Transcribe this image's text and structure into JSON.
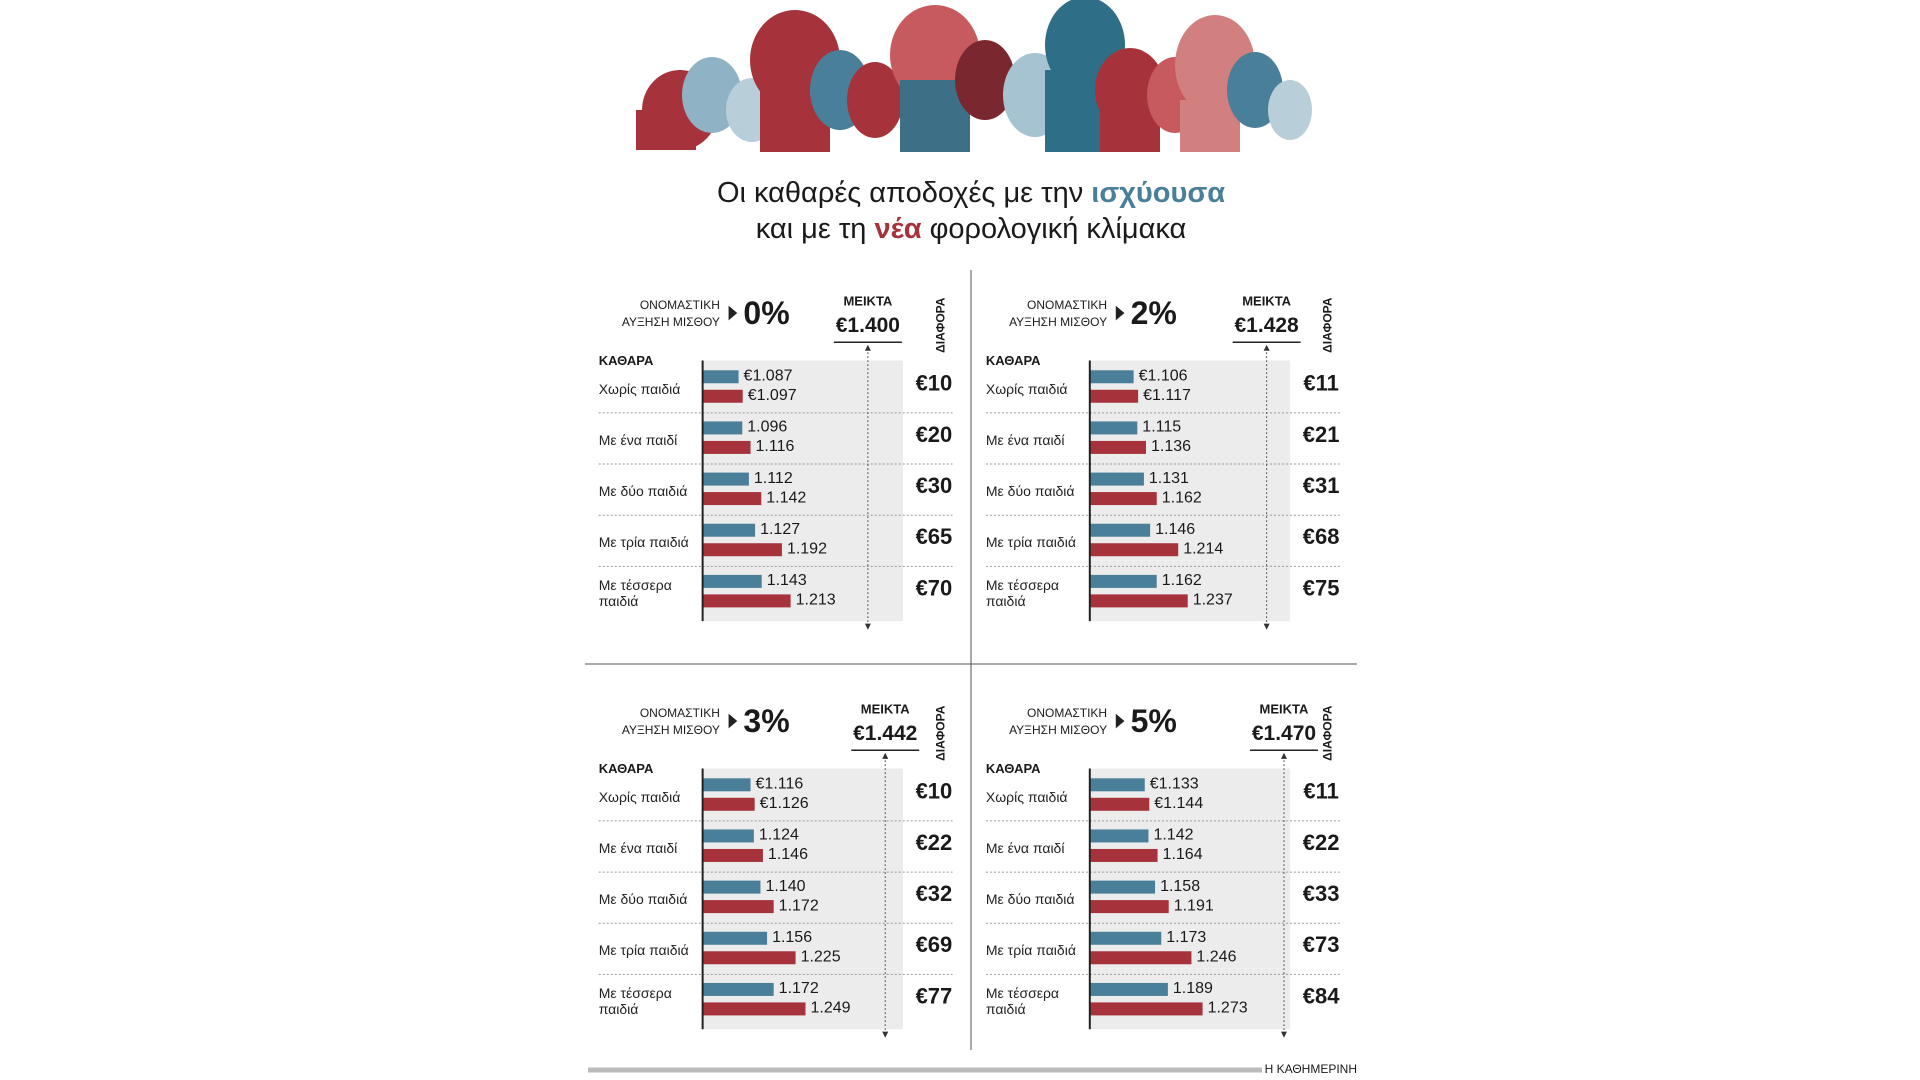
{
  "header": {
    "title_line1": [
      "Οι καθαρές αποδοχές με την",
      "ισχύουσα"
    ],
    "title_line2": [
      "και με τη",
      "νέα",
      "φορολογική κλίμακα"
    ],
    "credit": "Η ΚΑΘΗΜΕΡΙΝΗ"
  },
  "chart_data": [
    {
      "type": "bar",
      "orientation": "horizontal",
      "raise_caption": [
        "ΟΝΟΜΑΣΤΙΚΗ",
        "ΑΥΞΗΣΗ ΜΙΣΘΟΥ"
      ],
      "raise_label": "0%",
      "gross_caption": "ΜΕΙΚΤΑ",
      "gross": 1400,
      "gross_label": "€1.400",
      "net_caption": "ΚΑΘΑΡΑ",
      "difference_caption": "ΔΙΑΦΟΡΑ",
      "categories": [
        "Χωρίς παιδιά",
        "Με ένα παιδί",
        "Με δύο παιδιά",
        "Με τρία παιδιά",
        "Με τέσσερα παιδιά"
      ],
      "xlim": [
        1000,
        1500
      ],
      "series": [
        {
          "color": "#4a7f99",
          "values": [
            1087,
            1096,
            1112,
            1127,
            1143
          ],
          "value_labels": [
            "€1.087",
            "1.096",
            "1.112",
            "1.127",
            "1.143"
          ]
        },
        {
          "color": "#a6333c",
          "values": [
            1097,
            1116,
            1142,
            1192,
            1213
          ],
          "value_labels": [
            "€1.097",
            "1.116",
            "1.142",
            "1.192",
            "1.213"
          ]
        }
      ],
      "differences": [
        10,
        20,
        30,
        65,
        70
      ],
      "difference_labels": [
        "€10",
        "€20",
        "€30",
        "€65",
        "€70"
      ]
    },
    {
      "type": "bar",
      "orientation": "horizontal",
      "raise_caption": [
        "ΟΝΟΜΑΣΤΙΚΗ",
        "ΑΥΞΗΣΗ ΜΙΣΘΟΥ"
      ],
      "raise_label": "2%",
      "gross_caption": "ΜΕΙΚΤΑ",
      "gross": 1428,
      "gross_label": "€1.428",
      "net_caption": "ΚΑΘΑΡΑ",
      "difference_caption": "ΔΙΑΦΟΡΑ",
      "categories": [
        "Χωρίς παιδιά",
        "Με ένα παιδί",
        "Με δύο παιδιά",
        "Με τρία παιδιά",
        "Με τέσσερα παιδιά"
      ],
      "xlim": [
        1000,
        1500
      ],
      "series": [
        {
          "color": "#4a7f99",
          "values": [
            1106,
            1115,
            1131,
            1146,
            1162
          ],
          "value_labels": [
            "€1.106",
            "1.115",
            "1.131",
            "1.146",
            "1.162"
          ]
        },
        {
          "color": "#a6333c",
          "values": [
            1117,
            1136,
            1162,
            1214,
            1237
          ],
          "value_labels": [
            "€1.117",
            "1.136",
            "1.162",
            "1.214",
            "1.237"
          ]
        }
      ],
      "differences": [
        11,
        21,
        31,
        68,
        75
      ],
      "difference_labels": [
        "€11",
        "€21",
        "€31",
        "€68",
        "€75"
      ]
    },
    {
      "type": "bar",
      "orientation": "horizontal",
      "raise_caption": [
        "ΟΝΟΜΑΣΤΙΚΗ",
        "ΑΥΞΗΣΗ ΜΙΣΘΟΥ"
      ],
      "raise_label": "3%",
      "gross_caption": "ΜΕΙΚΤΑ",
      "gross": 1442,
      "gross_label": "€1.442",
      "net_caption": "ΚΑΘΑΡΑ",
      "difference_caption": "ΔΙΑΦΟΡΑ",
      "categories": [
        "Χωρίς παιδιά",
        "Με ένα παιδί",
        "Με δύο παιδιά",
        "Με τρία παιδιά",
        "Με τέσσερα παιδιά"
      ],
      "xlim": [
        1000,
        1500
      ],
      "series": [
        {
          "color": "#4a7f99",
          "values": [
            1116,
            1124,
            1140,
            1156,
            1172
          ],
          "value_labels": [
            "€1.116",
            "1.124",
            "1.140",
            "1.156",
            "1.172"
          ]
        },
        {
          "color": "#a6333c",
          "values": [
            1126,
            1146,
            1172,
            1225,
            1249
          ],
          "value_labels": [
            "€1.126",
            "1.146",
            "1.172",
            "1.225",
            "1.249"
          ]
        }
      ],
      "differences": [
        10,
        22,
        32,
        69,
        77
      ],
      "difference_labels": [
        "€10",
        "€22",
        "€32",
        "€69",
        "€77"
      ]
    },
    {
      "type": "bar",
      "orientation": "horizontal",
      "raise_caption": [
        "ΟΝΟΜΑΣΤΙΚΗ",
        "ΑΥΞΗΣΗ ΜΙΣΘΟΥ"
      ],
      "raise_label": "5%",
      "gross_caption": "ΜΕΙΚΤΑ",
      "gross": 1470,
      "gross_label": "€1.470",
      "net_caption": "ΚΑΘΑΡΑ",
      "difference_caption": "ΔΙΑΦΟΡΑ",
      "categories": [
        "Χωρίς παιδιά",
        "Με ένα παιδί",
        "Με δύο παιδιά",
        "Με τρία παιδιά",
        "Με τέσσερα παιδιά"
      ],
      "xlim": [
        1000,
        1500
      ],
      "series": [
        {
          "color": "#4a7f99",
          "values": [
            1133,
            1142,
            1158,
            1173,
            1189
          ],
          "value_labels": [
            "€1.133",
            "1.142",
            "1.158",
            "1.173",
            "1.189"
          ]
        },
        {
          "color": "#a6333c",
          "values": [
            1144,
            1164,
            1191,
            1246,
            1273
          ],
          "value_labels": [
            "€1.144",
            "1.164",
            "1.191",
            "1.246",
            "1.273"
          ]
        }
      ],
      "differences": [
        11,
        22,
        33,
        73,
        84
      ],
      "difference_labels": [
        "€11",
        "€22",
        "€33",
        "€73",
        "€84"
      ]
    }
  ]
}
